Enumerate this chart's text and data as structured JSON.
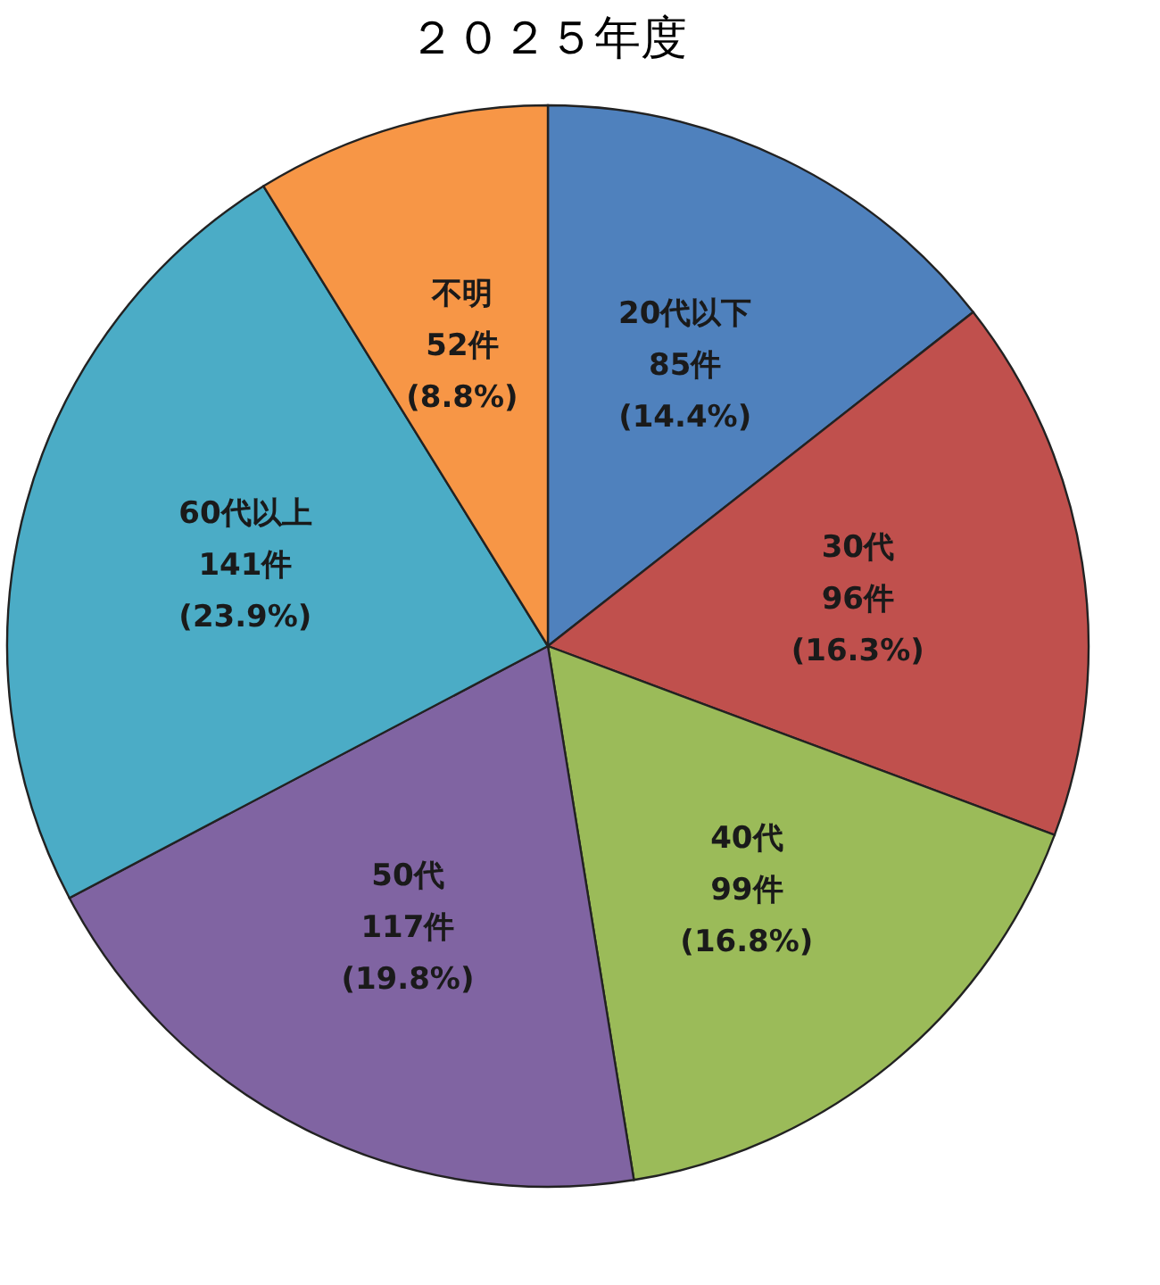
{
  "chart_data": {
    "type": "pie",
    "title": "２０２５年度",
    "categories": [
      "20代以下",
      "30代",
      "40代",
      "50代",
      "60代以上",
      "不明"
    ],
    "values": [
      85,
      96,
      99,
      117,
      141,
      52
    ],
    "value_labels": [
      "85件\n(14.4%)",
      "96件\n(16.3%)",
      "99件\n(16.8%)",
      "117件\n(19.8%)",
      "141件\n(23.9%)",
      "52件\n(8.8%)"
    ],
    "colors": [
      "#4f81bd",
      "#c0504d",
      "#9bbb59",
      "#8064a2",
      "#4bacc6",
      "#f79646"
    ]
  }
}
